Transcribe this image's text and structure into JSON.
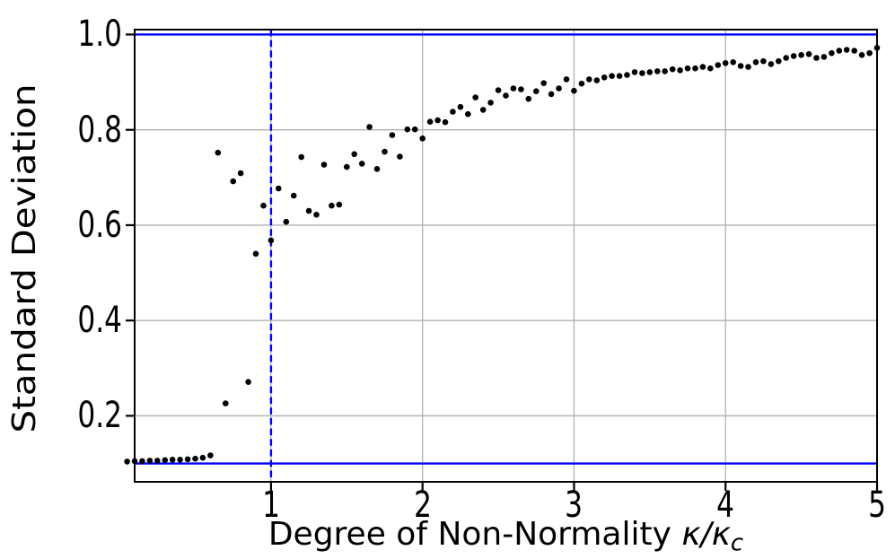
{
  "figure": {
    "background": "#ffffff",
    "ylabel": "Standard Deviation",
    "xlabel": {
      "prefix": "Degree of Non-Normality ",
      "kappa1": "κ",
      "slash": "/",
      "kappa2": "κ",
      "subscript": "c"
    }
  },
  "axes": {
    "x_ticks": [
      {
        "value": 1,
        "label": "1"
      },
      {
        "value": 2,
        "label": "2"
      },
      {
        "value": 3,
        "label": "3"
      },
      {
        "value": 4,
        "label": "4"
      },
      {
        "value": 5,
        "label": "5"
      }
    ],
    "y_ticks": [
      {
        "value": 0.2,
        "label": "0.2"
      },
      {
        "value": 0.4,
        "label": "0.4"
      },
      {
        "value": 0.6,
        "label": "0.6"
      },
      {
        "value": 0.8,
        "label": "0.8"
      },
      {
        "value": 1.0,
        "label": "1.0"
      }
    ]
  },
  "chart_data": {
    "type": "scatter",
    "title": "",
    "xlabel": "Degree of Non-Normality κ/κ_c",
    "ylabel": "Standard Deviation",
    "xlim": [
      0.1,
      5.0
    ],
    "ylim": [
      0.0615,
      1.0103
    ],
    "grid": true,
    "grid_color": "#b0b0b0",
    "spine_color": "#000000",
    "marker_color": "#000000",
    "marker_radius_px": 3.3,
    "annotations": {
      "hline_top": 1.0,
      "hline_bottom": 0.1,
      "vline_x": 1.0,
      "line_color": "#0000ff",
      "vline_style": "dashed"
    },
    "points": [
      [
        0.05,
        0.104
      ],
      [
        0.1,
        0.105
      ],
      [
        0.15,
        0.105
      ],
      [
        0.2,
        0.106
      ],
      [
        0.25,
        0.106
      ],
      [
        0.3,
        0.107
      ],
      [
        0.35,
        0.108
      ],
      [
        0.4,
        0.108
      ],
      [
        0.45,
        0.109
      ],
      [
        0.5,
        0.11
      ],
      [
        0.55,
        0.112
      ],
      [
        0.6,
        0.117
      ],
      [
        0.65,
        0.752
      ],
      [
        0.7,
        0.226
      ],
      [
        0.75,
        0.692
      ],
      [
        0.8,
        0.709
      ],
      [
        0.85,
        0.271
      ],
      [
        0.9,
        0.54
      ],
      [
        0.95,
        0.641
      ],
      [
        1.0,
        0.568
      ],
      [
        1.05,
        0.677
      ],
      [
        1.1,
        0.607
      ],
      [
        1.15,
        0.662
      ],
      [
        1.2,
        0.743
      ],
      [
        1.25,
        0.63
      ],
      [
        1.3,
        0.622
      ],
      [
        1.35,
        0.727
      ],
      [
        1.4,
        0.641
      ],
      [
        1.45,
        0.643
      ],
      [
        1.5,
        0.722
      ],
      [
        1.55,
        0.749
      ],
      [
        1.6,
        0.729
      ],
      [
        1.65,
        0.806
      ],
      [
        1.7,
        0.718
      ],
      [
        1.75,
        0.754
      ],
      [
        1.8,
        0.789
      ],
      [
        1.85,
        0.744
      ],
      [
        1.9,
        0.801
      ],
      [
        1.95,
        0.801
      ],
      [
        2.0,
        0.782
      ],
      [
        2.05,
        0.817
      ],
      [
        2.1,
        0.82
      ],
      [
        2.15,
        0.816
      ],
      [
        2.2,
        0.838
      ],
      [
        2.25,
        0.848
      ],
      [
        2.3,
        0.833
      ],
      [
        2.35,
        0.868
      ],
      [
        2.4,
        0.842
      ],
      [
        2.45,
        0.857
      ],
      [
        2.5,
        0.883
      ],
      [
        2.55,
        0.872
      ],
      [
        2.6,
        0.887
      ],
      [
        2.65,
        0.885
      ],
      [
        2.7,
        0.865
      ],
      [
        2.75,
        0.881
      ],
      [
        2.8,
        0.898
      ],
      [
        2.85,
        0.875
      ],
      [
        2.9,
        0.887
      ],
      [
        2.95,
        0.906
      ],
      [
        3.0,
        0.882
      ],
      [
        3.05,
        0.897
      ],
      [
        3.1,
        0.906
      ],
      [
        3.15,
        0.904
      ],
      [
        3.2,
        0.91
      ],
      [
        3.25,
        0.913
      ],
      [
        3.3,
        0.913
      ],
      [
        3.35,
        0.915
      ],
      [
        3.4,
        0.921
      ],
      [
        3.45,
        0.919
      ],
      [
        3.5,
        0.921
      ],
      [
        3.55,
        0.923
      ],
      [
        3.6,
        0.923
      ],
      [
        3.65,
        0.927
      ],
      [
        3.7,
        0.925
      ],
      [
        3.75,
        0.929
      ],
      [
        3.8,
        0.929
      ],
      [
        3.85,
        0.932
      ],
      [
        3.9,
        0.929
      ],
      [
        3.95,
        0.936
      ],
      [
        4.0,
        0.94
      ],
      [
        4.05,
        0.942
      ],
      [
        4.1,
        0.934
      ],
      [
        4.15,
        0.932
      ],
      [
        4.2,
        0.942
      ],
      [
        4.25,
        0.944
      ],
      [
        4.3,
        0.938
      ],
      [
        4.35,
        0.944
      ],
      [
        4.4,
        0.951
      ],
      [
        4.45,
        0.955
      ],
      [
        4.5,
        0.957
      ],
      [
        4.55,
        0.959
      ],
      [
        4.6,
        0.951
      ],
      [
        4.65,
        0.953
      ],
      [
        4.7,
        0.961
      ],
      [
        4.75,
        0.966
      ],
      [
        4.8,
        0.968
      ],
      [
        4.85,
        0.966
      ],
      [
        4.9,
        0.957
      ],
      [
        4.95,
        0.961
      ],
      [
        5.0,
        0.972
      ]
    ]
  }
}
